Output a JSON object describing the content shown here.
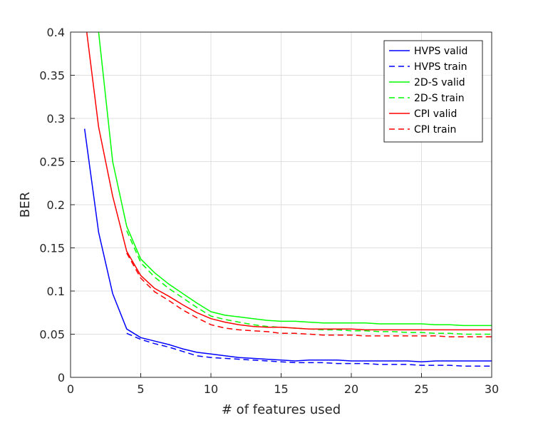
{
  "chart_data": {
    "type": "line",
    "title": "",
    "xlabel": "# of features used",
    "ylabel": "BER",
    "xlim": [
      0,
      30
    ],
    "ylim": [
      0,
      0.4
    ],
    "xticks": [
      0,
      5,
      10,
      15,
      20,
      25,
      30
    ],
    "yticks": [
      0,
      0.05,
      0.1,
      0.15,
      0.2,
      0.25,
      0.3,
      0.35,
      0.4
    ],
    "xtick_labels": [
      "0",
      "5",
      "10",
      "15",
      "20",
      "25",
      "30"
    ],
    "ytick_labels": [
      "0",
      "0.05",
      "0.1",
      "0.15",
      "0.2",
      "0.25",
      "0.3",
      "0.35",
      "0.4"
    ],
    "grid": true,
    "legend_position": "top-right",
    "series": [
      {
        "name": "HVPS valid",
        "color": "#0000ff",
        "style": "solid",
        "x": [
          1,
          2,
          3,
          4,
          5,
          6,
          7,
          8,
          9,
          10,
          11,
          12,
          13,
          14,
          15,
          16,
          17,
          18,
          19,
          20,
          21,
          22,
          23,
          24,
          25,
          26,
          27,
          28,
          29,
          30
        ],
        "y": [
          0.288,
          0.168,
          0.097,
          0.056,
          0.046,
          0.042,
          0.038,
          0.033,
          0.029,
          0.027,
          0.025,
          0.023,
          0.022,
          0.021,
          0.02,
          0.019,
          0.02,
          0.02,
          0.02,
          0.019,
          0.019,
          0.019,
          0.019,
          0.019,
          0.018,
          0.019,
          0.019,
          0.019,
          0.019,
          0.019
        ]
      },
      {
        "name": "HVPS train",
        "color": "#0000ff",
        "style": "dashed",
        "x": [
          4,
          5,
          6,
          7,
          8,
          9,
          10,
          11,
          12,
          13,
          14,
          15,
          16,
          17,
          18,
          19,
          20,
          21,
          22,
          23,
          24,
          25,
          26,
          27,
          28,
          29,
          30
        ],
        "y": [
          0.051,
          0.044,
          0.039,
          0.035,
          0.03,
          0.025,
          0.023,
          0.022,
          0.021,
          0.02,
          0.019,
          0.018,
          0.017,
          0.017,
          0.017,
          0.016,
          0.016,
          0.016,
          0.015,
          0.015,
          0.015,
          0.014,
          0.014,
          0.014,
          0.013,
          0.013,
          0.013
        ]
      },
      {
        "name": "2D-S valid",
        "color": "#00ff00",
        "style": "solid",
        "x": [
          1,
          2,
          3,
          4,
          5,
          6,
          7,
          8,
          9,
          10,
          11,
          12,
          13,
          14,
          15,
          16,
          17,
          18,
          19,
          20,
          21,
          22,
          23,
          24,
          25,
          26,
          27,
          28,
          29,
          30
        ],
        "y": [
          0.55,
          0.4,
          0.25,
          0.175,
          0.137,
          0.121,
          0.108,
          0.097,
          0.086,
          0.076,
          0.072,
          0.07,
          0.068,
          0.066,
          0.065,
          0.065,
          0.064,
          0.063,
          0.063,
          0.063,
          0.063,
          0.062,
          0.062,
          0.062,
          0.062,
          0.061,
          0.061,
          0.06,
          0.06,
          0.06
        ]
      },
      {
        "name": "2D-S train",
        "color": "#00ff00",
        "style": "dashed",
        "x": [
          4,
          5,
          6,
          7,
          8,
          9,
          10,
          11,
          12,
          13,
          14,
          15,
          16,
          17,
          18,
          19,
          20,
          21,
          22,
          23,
          24,
          25,
          26,
          27,
          28,
          29,
          30
        ],
        "y": [
          0.17,
          0.133,
          0.116,
          0.103,
          0.092,
          0.081,
          0.071,
          0.067,
          0.064,
          0.061,
          0.059,
          0.058,
          0.057,
          0.056,
          0.055,
          0.055,
          0.054,
          0.054,
          0.053,
          0.053,
          0.052,
          0.052,
          0.051,
          0.051,
          0.05,
          0.05,
          0.05
        ]
      },
      {
        "name": "CPI valid",
        "color": "#ff0000",
        "style": "solid",
        "x": [
          1,
          2,
          3,
          4,
          5,
          6,
          7,
          8,
          9,
          10,
          11,
          12,
          13,
          14,
          15,
          16,
          17,
          18,
          19,
          20,
          21,
          22,
          23,
          24,
          25,
          26,
          27,
          28,
          29,
          30
        ],
        "y": [
          0.42,
          0.29,
          0.21,
          0.146,
          0.118,
          0.103,
          0.094,
          0.084,
          0.075,
          0.068,
          0.064,
          0.061,
          0.059,
          0.058,
          0.058,
          0.057,
          0.056,
          0.056,
          0.056,
          0.056,
          0.055,
          0.055,
          0.055,
          0.055,
          0.055,
          0.055,
          0.055,
          0.055,
          0.055,
          0.055
        ]
      },
      {
        "name": "CPI train",
        "color": "#ff0000",
        "style": "dashed",
        "x": [
          4,
          5,
          6,
          7,
          8,
          9,
          10,
          11,
          12,
          13,
          14,
          15,
          16,
          17,
          18,
          19,
          20,
          21,
          22,
          23,
          24,
          25,
          26,
          27,
          28,
          29,
          30
        ],
        "y": [
          0.144,
          0.115,
          0.099,
          0.089,
          0.078,
          0.069,
          0.061,
          0.057,
          0.055,
          0.054,
          0.053,
          0.051,
          0.051,
          0.05,
          0.049,
          0.049,
          0.049,
          0.048,
          0.048,
          0.048,
          0.048,
          0.048,
          0.048,
          0.047,
          0.047,
          0.047,
          0.047
        ]
      }
    ]
  }
}
